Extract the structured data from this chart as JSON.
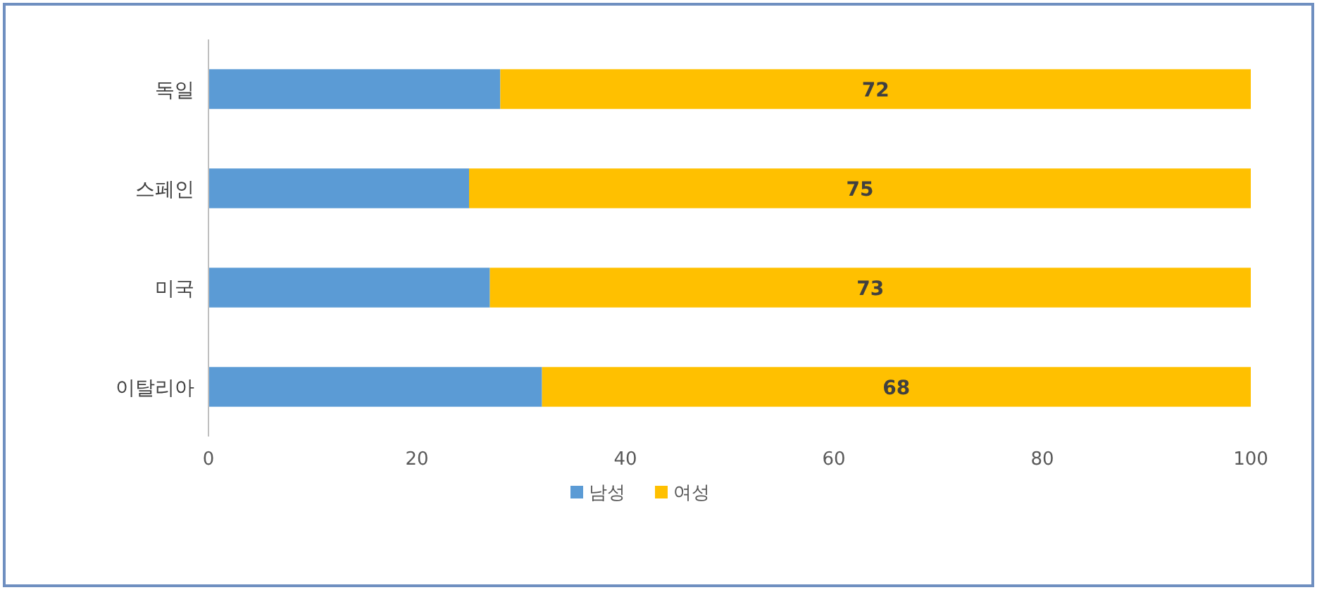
{
  "chart_data": {
    "type": "bar",
    "orientation": "horizontal",
    "stacked": true,
    "categories": [
      "독일",
      "스페인",
      "미국",
      "이탈리아"
    ],
    "series": [
      {
        "name": "남성",
        "color": "#5b9bd5",
        "values": [
          28,
          25,
          27,
          32
        ]
      },
      {
        "name": "여성",
        "color": "#ffc000",
        "values": [
          72,
          75,
          73,
          68
        ],
        "value_labels": [
          "72",
          "75",
          "73",
          "68"
        ]
      }
    ],
    "xlim": [
      0,
      100
    ],
    "xticks": [
      0,
      20,
      40,
      60,
      80,
      100
    ],
    "legend": "bottom"
  }
}
